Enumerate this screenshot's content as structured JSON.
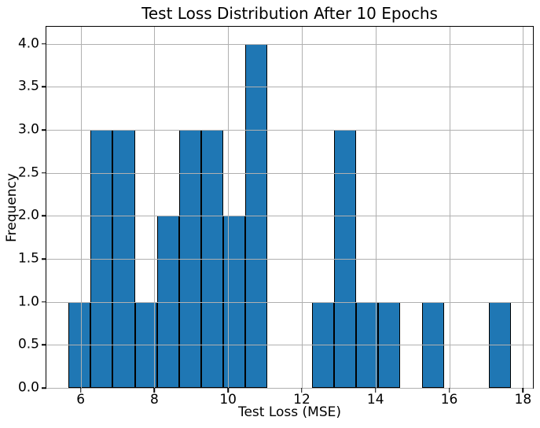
{
  "chart_data": {
    "type": "bar",
    "subtype": "histogram",
    "title": "Test Loss Distribution After 10 Epochs",
    "xlabel": "Test Loss (MSE)",
    "ylabel": "Frequency",
    "bin_edges": [
      5.67,
      6.27,
      6.87,
      7.47,
      8.07,
      8.67,
      9.27,
      9.87,
      10.47,
      11.07,
      11.67,
      12.27,
      12.87,
      13.47,
      14.07,
      14.67,
      15.27,
      15.87,
      16.47,
      17.07,
      17.67
    ],
    "counts": [
      1,
      3,
      3,
      1,
      2,
      3,
      3,
      2,
      4,
      0,
      0,
      1,
      3,
      1,
      1,
      0,
      1,
      0,
      0,
      1
    ],
    "total_samples": 30,
    "xlim": [
      5.07,
      18.27
    ],
    "ylim": [
      0,
      4.2
    ],
    "xticks": [
      6,
      8,
      10,
      12,
      14,
      16,
      18
    ],
    "xtick_labels": [
      "6",
      "8",
      "10",
      "12",
      "14",
      "16",
      "18"
    ],
    "yticks": [
      0,
      0.5,
      1,
      1.5,
      2,
      2.5,
      3,
      3.5,
      4
    ],
    "ytick_labels": [
      "0.0",
      "0.5",
      "1.0",
      "1.5",
      "2.0",
      "2.5",
      "3.0",
      "3.5",
      "4.0"
    ],
    "grid": true,
    "legend": null,
    "colors": {
      "bar_fill": "#1f77b4",
      "bar_edge": "#000000",
      "grid": "#b0b0b0",
      "axis": "#000000",
      "background": "#ffffff"
    }
  }
}
